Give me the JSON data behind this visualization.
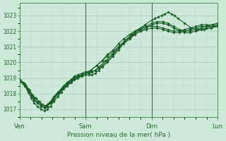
{
  "xlabel": "Pression niveau de la mer( hPa )",
  "bg_color": "#cce8d8",
  "line_color": "#1a5c28",
  "grid_color_major": "#a8cdb8",
  "grid_color_minor": "#b8d8c8",
  "tick_color": "#2a6a32",
  "label_color": "#2a6a32",
  "ylim": [
    1016.5,
    1023.8
  ],
  "yticks": [
    1017,
    1018,
    1019,
    1020,
    1021,
    1022,
    1023
  ],
  "xlim": [
    0,
    3.0
  ],
  "xtick_labels": [
    "Ven",
    "Sam",
    "Dim",
    "Lun"
  ],
  "xtick_positions": [
    0.0,
    1.0,
    2.0,
    3.0
  ],
  "lines": [
    {
      "points": [
        [
          0.0,
          1018.9
        ],
        [
          0.08,
          1018.6
        ],
        [
          0.13,
          1018.2
        ],
        [
          0.18,
          1017.9
        ],
        [
          0.22,
          1017.6
        ],
        [
          0.27,
          1017.4
        ],
        [
          0.33,
          1017.2
        ],
        [
          0.38,
          1017.1
        ],
        [
          0.42,
          1017.2
        ],
        [
          0.47,
          1017.4
        ],
        [
          0.52,
          1017.6
        ],
        [
          0.58,
          1018.0
        ],
        [
          0.63,
          1018.3
        ],
        [
          0.67,
          1018.5
        ],
        [
          0.72,
          1018.7
        ],
        [
          0.78,
          1018.9
        ],
        [
          0.83,
          1019.1
        ],
        [
          0.88,
          1019.2
        ],
        [
          0.94,
          1019.3
        ],
        [
          1.0,
          1019.4
        ],
        [
          1.05,
          1019.4
        ],
        [
          1.1,
          1019.4
        ],
        [
          1.15,
          1019.5
        ],
        [
          1.2,
          1019.6
        ],
        [
          1.25,
          1019.8
        ],
        [
          1.33,
          1020.1
        ],
        [
          1.42,
          1020.5
        ],
        [
          1.5,
          1020.9
        ],
        [
          1.58,
          1021.3
        ],
        [
          1.67,
          1021.6
        ],
        [
          1.75,
          1021.9
        ],
        [
          1.83,
          1022.1
        ],
        [
          1.92,
          1022.3
        ],
        [
          2.0,
          1022.5
        ],
        [
          2.08,
          1022.6
        ],
        [
          2.17,
          1022.6
        ],
        [
          2.25,
          1022.5
        ],
        [
          2.33,
          1022.3
        ],
        [
          2.42,
          1022.1
        ],
        [
          2.5,
          1022.0
        ],
        [
          2.58,
          1022.0
        ],
        [
          2.67,
          1022.1
        ],
        [
          2.75,
          1022.2
        ],
        [
          2.83,
          1022.3
        ],
        [
          2.92,
          1022.4
        ],
        [
          3.0,
          1022.5
        ]
      ]
    },
    {
      "points": [
        [
          0.0,
          1018.9
        ],
        [
          0.08,
          1018.5
        ],
        [
          0.13,
          1018.1
        ],
        [
          0.18,
          1017.7
        ],
        [
          0.22,
          1017.4
        ],
        [
          0.27,
          1017.2
        ],
        [
          0.33,
          1017.0
        ],
        [
          0.38,
          1016.9
        ],
        [
          0.42,
          1017.0
        ],
        [
          0.47,
          1017.2
        ],
        [
          0.52,
          1017.5
        ],
        [
          0.58,
          1017.8
        ],
        [
          0.63,
          1018.1
        ],
        [
          0.67,
          1018.3
        ],
        [
          0.72,
          1018.5
        ],
        [
          0.78,
          1018.7
        ],
        [
          0.83,
          1018.9
        ],
        [
          0.88,
          1019.0
        ],
        [
          0.94,
          1019.1
        ],
        [
          1.0,
          1019.2
        ],
        [
          1.05,
          1019.2
        ],
        [
          1.1,
          1019.2
        ],
        [
          1.15,
          1019.3
        ],
        [
          1.2,
          1019.5
        ],
        [
          1.25,
          1019.7
        ],
        [
          1.33,
          1020.0
        ],
        [
          1.42,
          1020.4
        ],
        [
          1.5,
          1020.8
        ],
        [
          1.58,
          1021.2
        ],
        [
          1.67,
          1021.5
        ],
        [
          1.75,
          1021.8
        ],
        [
          1.83,
          1022.0
        ],
        [
          1.92,
          1022.2
        ],
        [
          2.0,
          1022.4
        ],
        [
          2.08,
          1022.5
        ],
        [
          2.17,
          1022.5
        ],
        [
          2.25,
          1022.4
        ],
        [
          2.33,
          1022.2
        ],
        [
          2.42,
          1022.0
        ],
        [
          2.5,
          1021.9
        ],
        [
          2.58,
          1021.9
        ],
        [
          2.67,
          1022.0
        ],
        [
          2.75,
          1022.1
        ],
        [
          2.83,
          1022.2
        ],
        [
          2.92,
          1022.3
        ],
        [
          3.0,
          1022.4
        ]
      ]
    },
    {
      "points": [
        [
          0.0,
          1018.9
        ],
        [
          0.06,
          1018.7
        ],
        [
          0.1,
          1018.5
        ],
        [
          0.15,
          1018.2
        ],
        [
          0.2,
          1017.9
        ],
        [
          0.25,
          1017.7
        ],
        [
          0.3,
          1017.5
        ],
        [
          0.35,
          1017.3
        ],
        [
          0.4,
          1017.2
        ],
        [
          0.45,
          1017.4
        ],
        [
          0.5,
          1017.6
        ],
        [
          0.55,
          1017.9
        ],
        [
          0.6,
          1018.1
        ],
        [
          0.65,
          1018.3
        ],
        [
          0.7,
          1018.5
        ],
        [
          0.75,
          1018.7
        ],
        [
          0.8,
          1018.9
        ],
        [
          0.85,
          1019.0
        ],
        [
          0.9,
          1019.1
        ],
        [
          0.95,
          1019.2
        ],
        [
          1.0,
          1019.3
        ],
        [
          1.05,
          1019.3
        ],
        [
          1.1,
          1019.4
        ],
        [
          1.15,
          1019.5
        ],
        [
          1.2,
          1019.7
        ],
        [
          1.3,
          1020.1
        ],
        [
          1.4,
          1020.5
        ],
        [
          1.5,
          1021.0
        ],
        [
          1.6,
          1021.4
        ],
        [
          1.7,
          1021.8
        ],
        [
          1.8,
          1022.1
        ],
        [
          1.9,
          1022.4
        ],
        [
          2.0,
          1022.7
        ],
        [
          2.05,
          1022.8
        ],
        [
          2.1,
          1022.9
        ],
        [
          2.15,
          1023.0
        ],
        [
          2.2,
          1023.1
        ],
        [
          2.25,
          1023.2
        ],
        [
          2.3,
          1023.1
        ],
        [
          2.35,
          1023.0
        ],
        [
          2.4,
          1022.8
        ],
        [
          2.5,
          1022.5
        ],
        [
          2.6,
          1022.2
        ],
        [
          2.7,
          1022.1
        ],
        [
          2.8,
          1022.1
        ],
        [
          2.9,
          1022.2
        ],
        [
          3.0,
          1022.3
        ]
      ]
    },
    {
      "points": [
        [
          0.0,
          1018.8
        ],
        [
          0.08,
          1018.5
        ],
        [
          0.13,
          1018.2
        ],
        [
          0.18,
          1017.9
        ],
        [
          0.22,
          1017.6
        ],
        [
          0.27,
          1017.4
        ],
        [
          0.33,
          1017.2
        ],
        [
          0.38,
          1017.1
        ],
        [
          0.42,
          1017.2
        ],
        [
          0.47,
          1017.4
        ],
        [
          0.52,
          1017.7
        ],
        [
          0.58,
          1018.0
        ],
        [
          0.63,
          1018.2
        ],
        [
          0.67,
          1018.4
        ],
        [
          0.72,
          1018.6
        ],
        [
          0.78,
          1018.8
        ],
        [
          0.83,
          1019.0
        ],
        [
          0.88,
          1019.1
        ],
        [
          0.94,
          1019.2
        ],
        [
          1.0,
          1019.3
        ],
        [
          1.08,
          1019.5
        ],
        [
          1.17,
          1019.8
        ],
        [
          1.25,
          1020.1
        ],
        [
          1.33,
          1020.4
        ],
        [
          1.42,
          1020.7
        ],
        [
          1.5,
          1021.0
        ],
        [
          1.58,
          1021.3
        ],
        [
          1.67,
          1021.6
        ],
        [
          1.75,
          1021.8
        ],
        [
          1.83,
          1022.0
        ],
        [
          1.92,
          1022.1
        ],
        [
          2.0,
          1022.2
        ],
        [
          2.08,
          1022.2
        ],
        [
          2.17,
          1022.1
        ],
        [
          2.25,
          1022.0
        ],
        [
          2.33,
          1021.9
        ],
        [
          2.42,
          1021.9
        ],
        [
          2.5,
          1022.0
        ],
        [
          2.58,
          1022.1
        ],
        [
          2.67,
          1022.2
        ],
        [
          2.75,
          1022.3
        ],
        [
          2.83,
          1022.3
        ],
        [
          2.92,
          1022.3
        ],
        [
          3.0,
          1022.3
        ]
      ]
    },
    {
      "points": [
        [
          0.0,
          1018.9
        ],
        [
          0.08,
          1018.6
        ],
        [
          0.13,
          1018.3
        ],
        [
          0.18,
          1018.0
        ],
        [
          0.22,
          1017.7
        ],
        [
          0.27,
          1017.5
        ],
        [
          0.33,
          1017.3
        ],
        [
          0.38,
          1017.2
        ],
        [
          0.42,
          1017.3
        ],
        [
          0.47,
          1017.5
        ],
        [
          0.52,
          1017.8
        ],
        [
          0.58,
          1018.1
        ],
        [
          0.63,
          1018.3
        ],
        [
          0.67,
          1018.5
        ],
        [
          0.72,
          1018.7
        ],
        [
          0.78,
          1018.9
        ],
        [
          0.83,
          1019.0
        ],
        [
          0.88,
          1019.1
        ],
        [
          0.94,
          1019.2
        ],
        [
          1.0,
          1019.3
        ],
        [
          1.08,
          1019.5
        ],
        [
          1.17,
          1019.8
        ],
        [
          1.25,
          1020.1
        ],
        [
          1.33,
          1020.5
        ],
        [
          1.42,
          1020.8
        ],
        [
          1.5,
          1021.2
        ],
        [
          1.58,
          1021.5
        ],
        [
          1.67,
          1021.8
        ],
        [
          1.75,
          1022.0
        ],
        [
          1.83,
          1022.2
        ],
        [
          1.92,
          1022.3
        ],
        [
          2.0,
          1022.3
        ],
        [
          2.08,
          1022.3
        ],
        [
          2.17,
          1022.2
        ],
        [
          2.25,
          1022.1
        ],
        [
          2.33,
          1022.0
        ],
        [
          2.42,
          1022.0
        ],
        [
          2.5,
          1022.1
        ],
        [
          2.58,
          1022.2
        ],
        [
          2.67,
          1022.3
        ],
        [
          2.75,
          1022.4
        ],
        [
          2.83,
          1022.4
        ],
        [
          2.92,
          1022.4
        ],
        [
          3.0,
          1022.5
        ]
      ]
    }
  ]
}
